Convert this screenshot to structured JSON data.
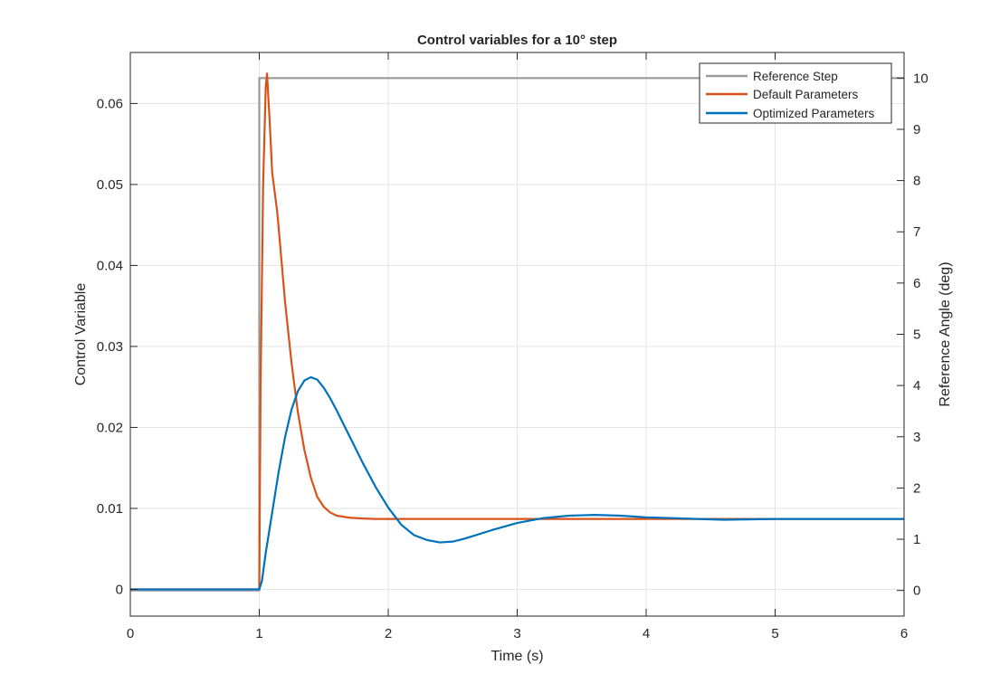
{
  "chart_data": {
    "type": "line",
    "title": "Control variables for a 10° step",
    "xlabel": "Time (s)",
    "ylabel": "Control Variable",
    "ylabel_right": "Reference Angle (deg)",
    "xlim": [
      0,
      6
    ],
    "ylim": [
      -0.0033,
      0.0663
    ],
    "ylim_right": [
      -0.5,
      10.5
    ],
    "x_ticks": [
      0,
      1,
      2,
      3,
      4,
      5,
      6
    ],
    "y_ticks": [
      0,
      0.01,
      0.02,
      0.03,
      0.04,
      0.05,
      0.06
    ],
    "y_ticks_right": [
      0,
      1,
      2,
      3,
      4,
      5,
      6,
      7,
      8,
      9,
      10
    ],
    "grid": true,
    "legend_position": "top-right",
    "series": [
      {
        "name": "Reference Step",
        "axis": "right",
        "color": "#999999",
        "x": [
          0,
          1,
          1,
          6
        ],
        "y": [
          0,
          0,
          10,
          10
        ]
      },
      {
        "name": "Default Parameters",
        "axis": "left",
        "color": "#d95319",
        "x": [
          0,
          1,
          1.01,
          1.03,
          1.05,
          1.06,
          1.08,
          1.1,
          1.12,
          1.14,
          1.17,
          1.2,
          1.25,
          1.3,
          1.35,
          1.4,
          1.45,
          1.5,
          1.55,
          1.6,
          1.7,
          1.8,
          1.9,
          2.0,
          2.5,
          3,
          4,
          5,
          6
        ],
        "y": [
          0,
          0,
          0.025,
          0.05,
          0.062,
          0.0637,
          0.058,
          0.0515,
          0.049,
          0.0465,
          0.041,
          0.0355,
          0.028,
          0.0218,
          0.0172,
          0.0138,
          0.0114,
          0.0102,
          0.0095,
          0.0091,
          0.00885,
          0.00875,
          0.0087,
          0.0087,
          0.0087,
          0.0087,
          0.0087,
          0.0087,
          0.0087
        ]
      },
      {
        "name": "Optimized Parameters",
        "axis": "left",
        "color": "#0072bd",
        "x": [
          0,
          1,
          1.02,
          1.05,
          1.1,
          1.15,
          1.2,
          1.25,
          1.3,
          1.35,
          1.4,
          1.45,
          1.5,
          1.55,
          1.6,
          1.7,
          1.8,
          1.9,
          2.0,
          2.1,
          2.2,
          2.3,
          2.4,
          2.5,
          2.6,
          2.8,
          3.0,
          3.2,
          3.4,
          3.6,
          3.8,
          4.0,
          4.2,
          4.4,
          4.6,
          5.0,
          5.5,
          6.0
        ],
        "y": [
          0,
          0,
          0.001,
          0.0045,
          0.0095,
          0.0145,
          0.0188,
          0.0222,
          0.0245,
          0.0258,
          0.0262,
          0.0259,
          0.0249,
          0.0236,
          0.0221,
          0.0189,
          0.0157,
          0.0127,
          0.0101,
          0.008,
          0.0067,
          0.0061,
          0.0058,
          0.0059,
          0.0063,
          0.0073,
          0.0082,
          0.0088,
          0.0091,
          0.0092,
          0.0091,
          0.0089,
          0.0088,
          0.0087,
          0.0086,
          0.0087,
          0.0087,
          0.0087
        ]
      }
    ]
  }
}
